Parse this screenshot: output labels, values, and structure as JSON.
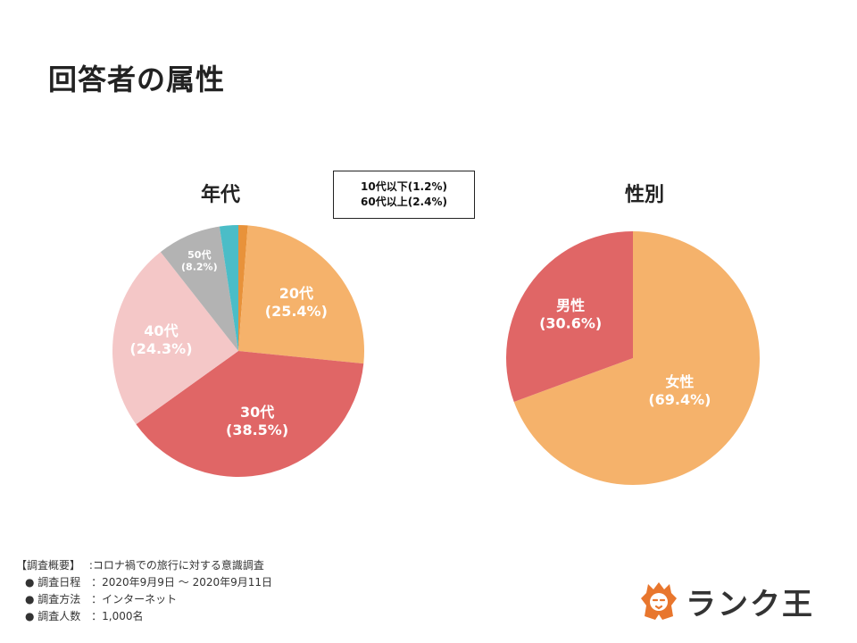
{
  "page": {
    "title": "回答者の属性"
  },
  "note": {
    "line1": "10代以下(1.2%)",
    "line2": "60代以上(2.4%)"
  },
  "survey": {
    "heading": "【調査概要】",
    "heading_value": ":コロナ禍での旅行に対する意識調査",
    "rows": [
      {
        "label": "● 調査日程",
        "value": "：2020年9月9日 〜 2020年9月11日"
      },
      {
        "label": "● 調査方法",
        "value": "：インターネット"
      },
      {
        "label": "● 調査人数",
        "value": "：1,000名"
      }
    ]
  },
  "brand": {
    "name": "ランク王",
    "icon": "lion-icon",
    "color": "#e8762d"
  },
  "chart_data": [
    {
      "type": "pie",
      "title": "年代",
      "slices": [
        {
          "label": "10代以下",
          "value": 1.2,
          "color": "#e8923a",
          "label_text": "",
          "pct_text": ""
        },
        {
          "label": "20代",
          "value": 25.4,
          "color": "#f5b26b",
          "label_text": "20代",
          "pct_text": "(25.4%)"
        },
        {
          "label": "30代",
          "value": 38.5,
          "color": "#e06666",
          "label_text": "30代",
          "pct_text": "(38.5%)"
        },
        {
          "label": "40代",
          "value": 24.3,
          "color": "#f4c7c7",
          "label_text": "40代",
          "pct_text": "(24.3%)"
        },
        {
          "label": "50代",
          "value": 8.2,
          "color": "#b3b3b3",
          "label_text": "50代",
          "pct_text": "(8.2%)"
        },
        {
          "label": "60代以上",
          "value": 2.4,
          "color": "#4bbdc7",
          "label_text": "",
          "pct_text": ""
        }
      ]
    },
    {
      "type": "pie",
      "title": "性別",
      "slices": [
        {
          "label": "女性",
          "value": 69.4,
          "color": "#f5b26b",
          "label_text": "女性",
          "pct_text": "(69.4%)"
        },
        {
          "label": "男性",
          "value": 30.6,
          "color": "#e06666",
          "label_text": "男性",
          "pct_text": "(30.6%)"
        }
      ]
    }
  ]
}
